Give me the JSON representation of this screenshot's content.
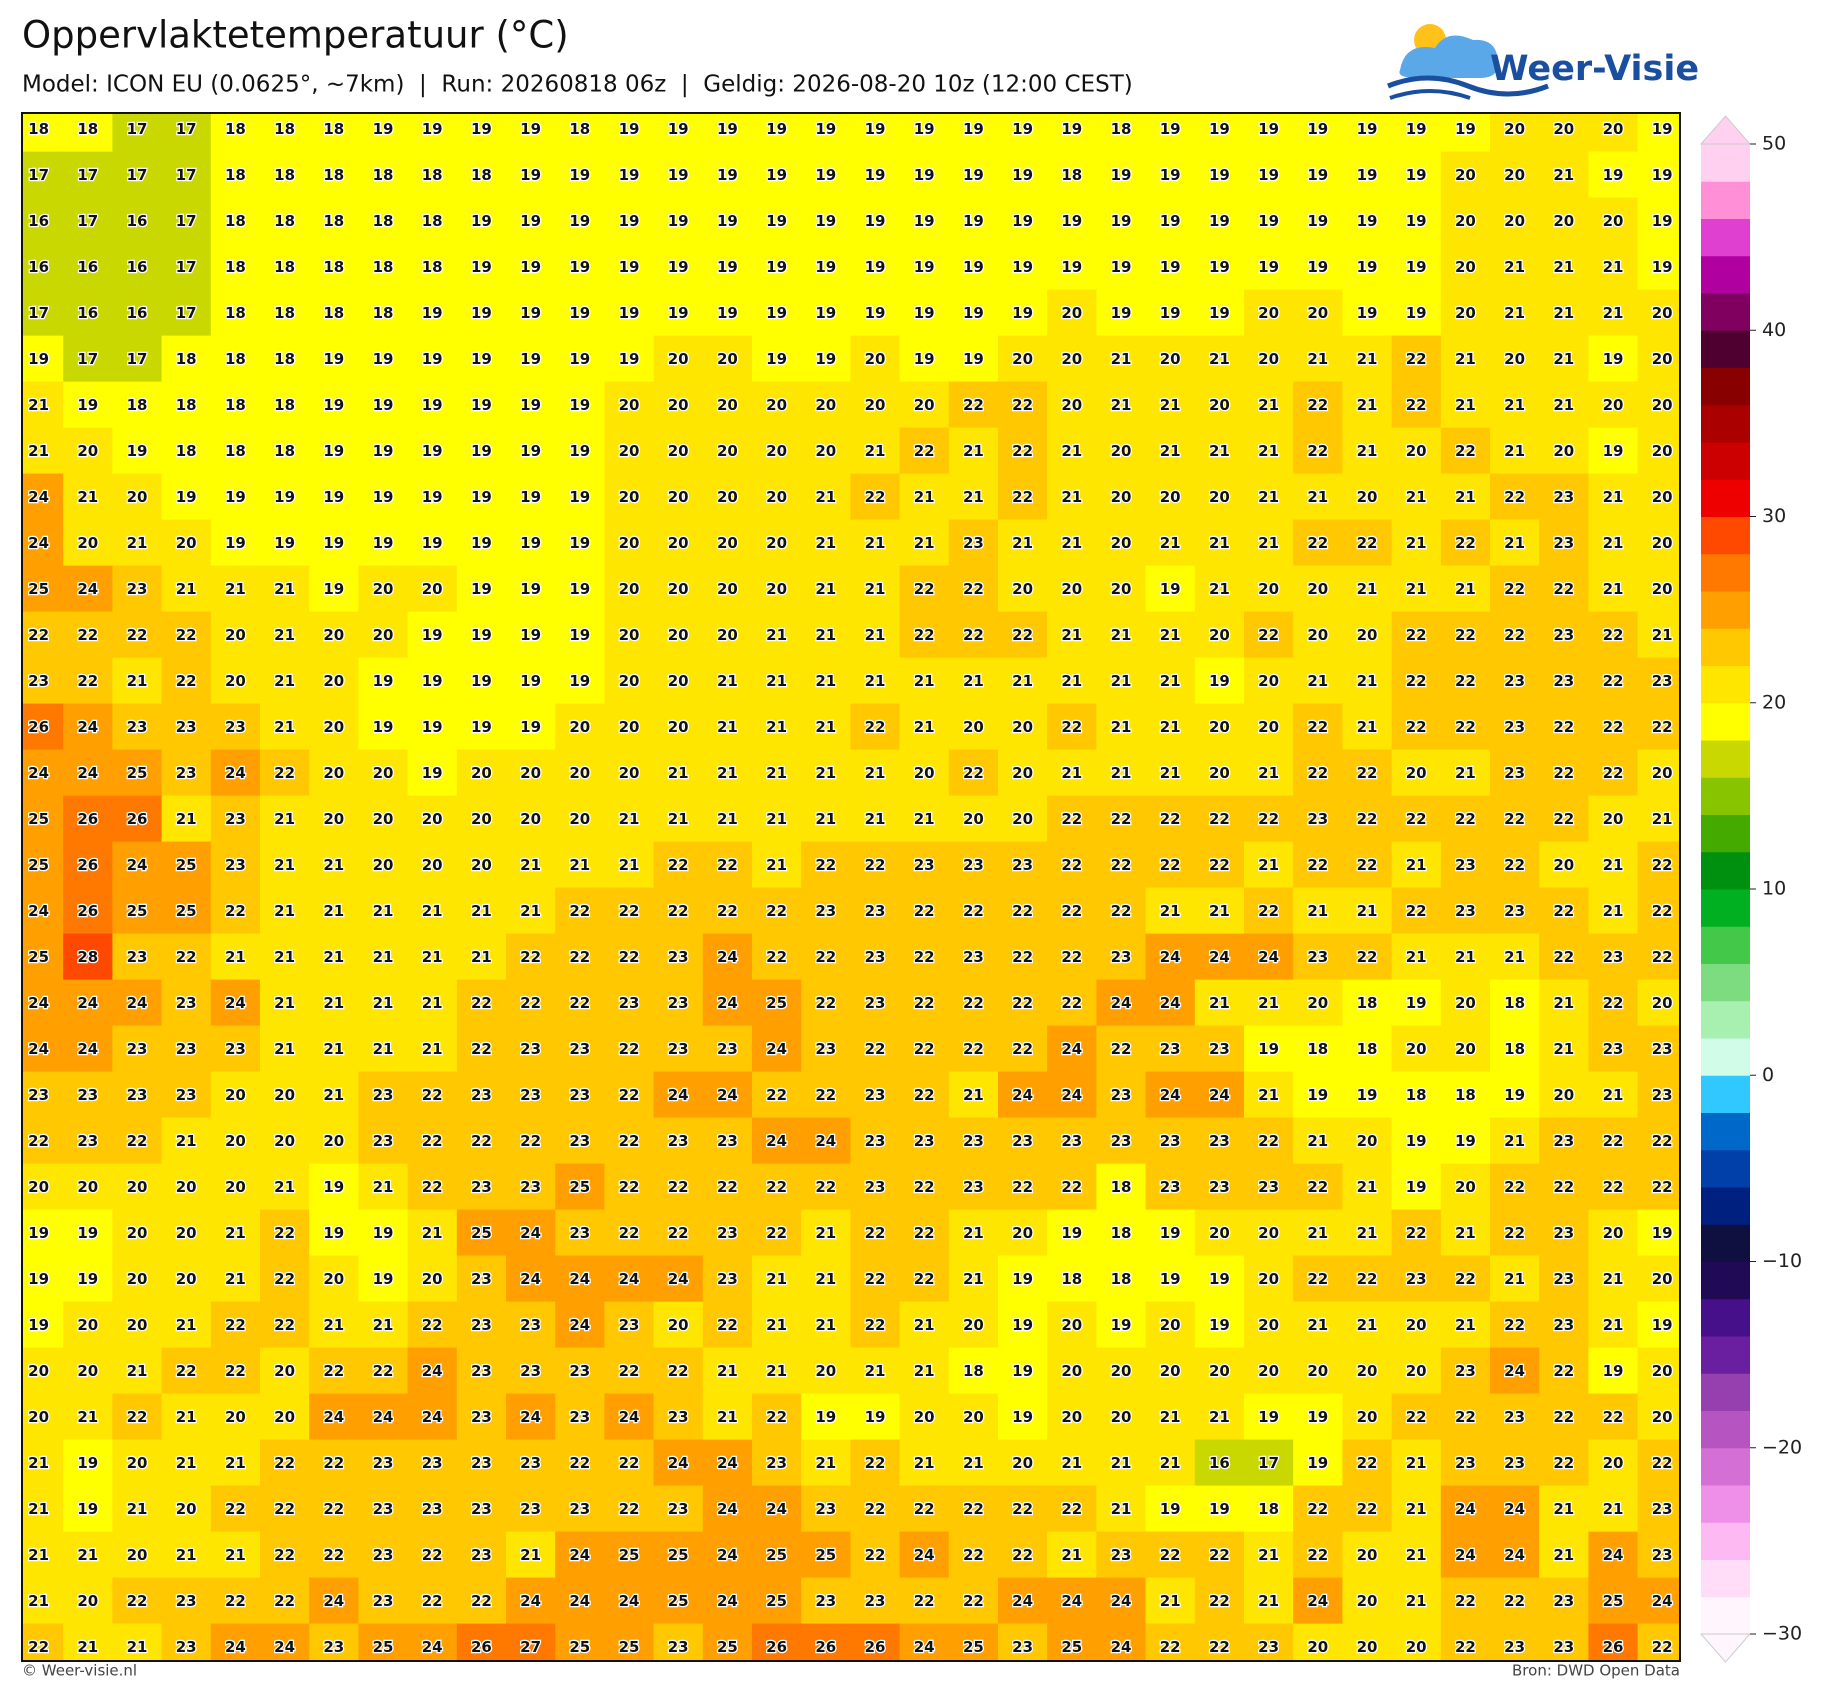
{
  "header": {
    "title": "Oppervlaktetemperatuur (°C)",
    "subtitle": "Model: ICON EU (0.0625°, ~7km)  |  Run: 20260818 06z  |  Geldig: 2026-08-20 10z (12:00 CEST)"
  },
  "logo": {
    "text": "Weer-Visie"
  },
  "grid": {
    "rows": [
      [
        18,
        18,
        17,
        17,
        18,
        18,
        18,
        19,
        19,
        19,
        19,
        18,
        19,
        19,
        19,
        19,
        19,
        19,
        19,
        19,
        19,
        19,
        18,
        19,
        19,
        19,
        19,
        19,
        19,
        19,
        20,
        20,
        20,
        19
      ],
      [
        17,
        17,
        17,
        17,
        18,
        18,
        18,
        18,
        18,
        18,
        19,
        19,
        19,
        19,
        19,
        19,
        19,
        19,
        19,
        19,
        19,
        18,
        19,
        19,
        19,
        19,
        19,
        19,
        19,
        20,
        20,
        21,
        19,
        19
      ],
      [
        16,
        17,
        16,
        17,
        18,
        18,
        18,
        18,
        18,
        19,
        19,
        19,
        19,
        19,
        19,
        19,
        19,
        19,
        19,
        19,
        19,
        19,
        19,
        19,
        19,
        19,
        19,
        19,
        19,
        20,
        20,
        20,
        20,
        19
      ],
      [
        16,
        16,
        16,
        17,
        18,
        18,
        18,
        18,
        18,
        19,
        19,
        19,
        19,
        19,
        19,
        19,
        19,
        19,
        19,
        19,
        19,
        19,
        19,
        19,
        19,
        19,
        19,
        19,
        19,
        20,
        21,
        21,
        21,
        19
      ],
      [
        17,
        16,
        16,
        17,
        18,
        18,
        18,
        18,
        19,
        19,
        19,
        19,
        19,
        19,
        19,
        19,
        19,
        19,
        19,
        19,
        19,
        20,
        19,
        19,
        19,
        20,
        20,
        19,
        19,
        20,
        21,
        21,
        21,
        20
      ],
      [
        19,
        17,
        17,
        18,
        18,
        18,
        19,
        19,
        19,
        19,
        19,
        19,
        19,
        20,
        20,
        19,
        19,
        20,
        19,
        19,
        20,
        20,
        21,
        20,
        21,
        20,
        21,
        21,
        22,
        21,
        20,
        21,
        19,
        20
      ],
      [
        21,
        19,
        18,
        18,
        18,
        18,
        19,
        19,
        19,
        19,
        19,
        19,
        20,
        20,
        20,
        20,
        20,
        20,
        20,
        22,
        22,
        20,
        21,
        21,
        20,
        21,
        22,
        21,
        22,
        21,
        21,
        21,
        20,
        20
      ],
      [
        21,
        20,
        19,
        18,
        18,
        18,
        19,
        19,
        19,
        19,
        19,
        19,
        20,
        20,
        20,
        20,
        20,
        21,
        22,
        21,
        22,
        21,
        20,
        21,
        21,
        21,
        22,
        21,
        20,
        22,
        21,
        20,
        19,
        20
      ],
      [
        24,
        21,
        20,
        19,
        19,
        19,
        19,
        19,
        19,
        19,
        19,
        19,
        20,
        20,
        20,
        20,
        21,
        22,
        21,
        21,
        22,
        21,
        20,
        20,
        20,
        21,
        21,
        20,
        21,
        21,
        22,
        23,
        21,
        20
      ],
      [
        24,
        20,
        21,
        20,
        19,
        19,
        19,
        19,
        19,
        19,
        19,
        19,
        20,
        20,
        20,
        20,
        21,
        21,
        21,
        23,
        21,
        21,
        20,
        21,
        21,
        21,
        22,
        22,
        21,
        22,
        21,
        23,
        21,
        20
      ],
      [
        25,
        24,
        23,
        21,
        21,
        21,
        19,
        20,
        20,
        19,
        19,
        19,
        20,
        20,
        20,
        20,
        21,
        21,
        22,
        22,
        20,
        20,
        20,
        19,
        21,
        20,
        20,
        21,
        21,
        21,
        22,
        22,
        21,
        20
      ],
      [
        22,
        22,
        22,
        22,
        20,
        21,
        20,
        20,
        19,
        19,
        19,
        19,
        20,
        20,
        20,
        21,
        21,
        21,
        22,
        22,
        22,
        21,
        21,
        21,
        20,
        22,
        20,
        20,
        22,
        22,
        22,
        23,
        22,
        21
      ],
      [
        23,
        22,
        21,
        22,
        20,
        21,
        20,
        19,
        19,
        19,
        19,
        19,
        20,
        20,
        21,
        21,
        21,
        21,
        21,
        21,
        21,
        21,
        21,
        21,
        19,
        20,
        21,
        21,
        22,
        22,
        23,
        23,
        22,
        23
      ],
      [
        26,
        24,
        23,
        23,
        23,
        21,
        20,
        19,
        19,
        19,
        19,
        20,
        20,
        20,
        21,
        21,
        21,
        22,
        21,
        20,
        20,
        22,
        21,
        21,
        20,
        20,
        22,
        21,
        22,
        22,
        23,
        22,
        22,
        22
      ],
      [
        24,
        24,
        25,
        23,
        24,
        22,
        20,
        20,
        19,
        20,
        20,
        20,
        20,
        21,
        21,
        21,
        21,
        21,
        20,
        22,
        20,
        21,
        21,
        21,
        20,
        21,
        22,
        22,
        20,
        21,
        23,
        22,
        22,
        20
      ],
      [
        25,
        26,
        26,
        21,
        23,
        21,
        20,
        20,
        20,
        20,
        20,
        20,
        21,
        21,
        21,
        21,
        21,
        21,
        21,
        20,
        20,
        22,
        22,
        22,
        22,
        22,
        23,
        22,
        22,
        22,
        22,
        22,
        20,
        21
      ],
      [
        25,
        26,
        24,
        25,
        23,
        21,
        21,
        20,
        20,
        20,
        21,
        21,
        21,
        22,
        22,
        21,
        22,
        22,
        23,
        23,
        23,
        22,
        22,
        22,
        22,
        21,
        22,
        22,
        21,
        23,
        22,
        20,
        21,
        22
      ],
      [
        24,
        26,
        25,
        25,
        22,
        21,
        21,
        21,
        21,
        21,
        21,
        22,
        22,
        22,
        22,
        22,
        23,
        23,
        22,
        22,
        22,
        22,
        22,
        21,
        21,
        22,
        21,
        21,
        22,
        23,
        23,
        22,
        21,
        22
      ],
      [
        25,
        28,
        23,
        22,
        21,
        21,
        21,
        21,
        21,
        21,
        22,
        22,
        22,
        23,
        24,
        22,
        22,
        23,
        22,
        23,
        22,
        22,
        23,
        24,
        24,
        24,
        23,
        22,
        21,
        21,
        21,
        22,
        23,
        22
      ],
      [
        24,
        24,
        24,
        23,
        24,
        21,
        21,
        21,
        21,
        22,
        22,
        22,
        23,
        23,
        24,
        25,
        22,
        23,
        22,
        22,
        22,
        22,
        24,
        24,
        21,
        21,
        20,
        18,
        19,
        20,
        18,
        21,
        22,
        20
      ],
      [
        24,
        24,
        23,
        23,
        23,
        21,
        21,
        21,
        21,
        22,
        23,
        23,
        22,
        23,
        23,
        24,
        23,
        22,
        22,
        22,
        22,
        24,
        22,
        23,
        23,
        19,
        18,
        18,
        20,
        20,
        18,
        21,
        23,
        23
      ],
      [
        23,
        23,
        23,
        23,
        20,
        20,
        21,
        23,
        22,
        23,
        23,
        23,
        22,
        24,
        24,
        22,
        22,
        23,
        22,
        21,
        24,
        24,
        23,
        24,
        24,
        21,
        19,
        19,
        18,
        18,
        19,
        20,
        21,
        23
      ],
      [
        22,
        23,
        22,
        21,
        20,
        20,
        20,
        23,
        22,
        22,
        22,
        23,
        22,
        23,
        23,
        24,
        24,
        23,
        23,
        23,
        23,
        23,
        23,
        23,
        23,
        22,
        21,
        20,
        19,
        19,
        21,
        23,
        22,
        22
      ],
      [
        20,
        20,
        20,
        20,
        20,
        21,
        19,
        21,
        22,
        23,
        23,
        25,
        22,
        22,
        22,
        22,
        22,
        23,
        22,
        23,
        22,
        22,
        18,
        23,
        23,
        23,
        22,
        21,
        19,
        20,
        22,
        22,
        22,
        22
      ],
      [
        19,
        19,
        20,
        20,
        21,
        22,
        19,
        19,
        21,
        25,
        24,
        23,
        22,
        22,
        23,
        22,
        21,
        22,
        22,
        21,
        20,
        19,
        18,
        19,
        20,
        20,
        21,
        21,
        22,
        21,
        22,
        23,
        20,
        19
      ],
      [
        19,
        19,
        20,
        20,
        21,
        22,
        20,
        19,
        20,
        23,
        24,
        24,
        24,
        24,
        23,
        21,
        21,
        22,
        22,
        21,
        19,
        18,
        18,
        19,
        19,
        20,
        22,
        22,
        23,
        22,
        21,
        23,
        21,
        20
      ],
      [
        19,
        20,
        20,
        21,
        22,
        22,
        21,
        21,
        22,
        23,
        23,
        24,
        23,
        20,
        22,
        21,
        21,
        22,
        21,
        20,
        19,
        20,
        19,
        20,
        19,
        20,
        21,
        21,
        20,
        21,
        22,
        23,
        21,
        19
      ],
      [
        20,
        20,
        21,
        22,
        22,
        20,
        22,
        22,
        24,
        23,
        23,
        23,
        22,
        22,
        21,
        21,
        20,
        21,
        21,
        18,
        19,
        20,
        20,
        20,
        20,
        20,
        20,
        20,
        20,
        23,
        24,
        22,
        19,
        20
      ],
      [
        20,
        21,
        22,
        21,
        20,
        20,
        24,
        24,
        24,
        23,
        24,
        23,
        24,
        23,
        21,
        22,
        19,
        19,
        20,
        20,
        19,
        20,
        20,
        21,
        21,
        19,
        19,
        20,
        22,
        22,
        23,
        22,
        22,
        20
      ],
      [
        21,
        19,
        20,
        21,
        21,
        22,
        22,
        23,
        23,
        23,
        23,
        22,
        22,
        24,
        24,
        23,
        21,
        22,
        21,
        21,
        20,
        21,
        21,
        21,
        16,
        17,
        19,
        22,
        21,
        23,
        23,
        22,
        20,
        22
      ],
      [
        21,
        19,
        21,
        20,
        22,
        22,
        22,
        23,
        23,
        23,
        23,
        23,
        22,
        23,
        24,
        24,
        23,
        22,
        22,
        22,
        22,
        22,
        21,
        19,
        19,
        18,
        22,
        22,
        21,
        24,
        24,
        21,
        21,
        23
      ],
      [
        21,
        21,
        20,
        21,
        21,
        22,
        22,
        23,
        22,
        23,
        21,
        24,
        25,
        25,
        24,
        25,
        25,
        22,
        24,
        22,
        22,
        21,
        23,
        22,
        22,
        21,
        22,
        20,
        21,
        24,
        24,
        21,
        24,
        23
      ],
      [
        21,
        20,
        22,
        23,
        22,
        22,
        24,
        23,
        22,
        22,
        24,
        24,
        24,
        25,
        24,
        25,
        23,
        23,
        22,
        22,
        24,
        24,
        24,
        21,
        22,
        21,
        24,
        20,
        21,
        22,
        22,
        23,
        25,
        24
      ],
      [
        22,
        21,
        21,
        23,
        24,
        24,
        23,
        25,
        24,
        26,
        27,
        25,
        25,
        23,
        25,
        26,
        26,
        26,
        24,
        25,
        23,
        25,
        24,
        22,
        22,
        23,
        20,
        20,
        20,
        22,
        23,
        23,
        26,
        22
      ]
    ]
  },
  "colorbar": {
    "lim": [
      -30,
      50
    ],
    "ticks": [
      50,
      40,
      30,
      20,
      10,
      0,
      {
        "value": -10,
        "label": "−10"
      },
      {
        "value": -20,
        "label": "−20"
      },
      {
        "value": -30,
        "label": "−30"
      }
    ],
    "colors": [
      "#fff5fd",
      "#ffdcf7",
      "#fdbaf2",
      "#ee90e8",
      "#d46fd6",
      "#b655c2",
      "#9540ae",
      "#6a1fa0",
      "#45108a",
      "#200a55",
      "#101040",
      "#002080",
      "#0040a8",
      "#0068c8",
      "#30c8ff",
      "#d0fce8",
      "#a8f0b0",
      "#7ddc80",
      "#44c84a",
      "#00b020",
      "#009010",
      "#44aa00",
      "#88c400",
      "#c8d800",
      "#ffff00",
      "#ffe600",
      "#ffc800",
      "#ffa000",
      "#ff7800",
      "#ff4800",
      "#ee0000",
      "#cc0000",
      "#aa0000",
      "#880000",
      "#500030",
      "#800060",
      "#b000a0",
      "#e040d0",
      "#ff90d8",
      "#ffd0f0"
    ]
  },
  "footer": {
    "left": "© Weer-visie.nl",
    "right": "Bron: DWD Open Data"
  }
}
